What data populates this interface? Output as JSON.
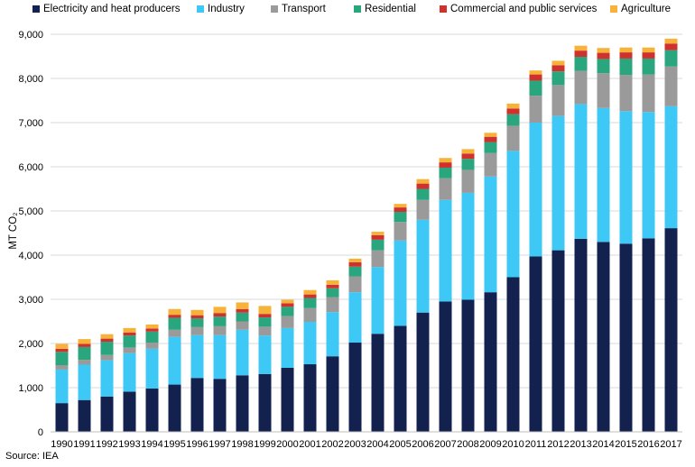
{
  "chart_data": {
    "type": "bar",
    "stacked": true,
    "title": "",
    "xlabel": "",
    "ylabel": "MT CO₂",
    "ylim": [
      0,
      9000
    ],
    "yticks": [
      0,
      1000,
      2000,
      3000,
      4000,
      5000,
      6000,
      7000,
      8000,
      9000
    ],
    "ytick_labels": [
      "0",
      "1,000",
      "2,000",
      "3,000",
      "4,000",
      "5,000",
      "6,000",
      "7,000",
      "8,000",
      "9,000"
    ],
    "grid": true,
    "legend_position": "top",
    "categories": [
      "1990",
      "1991",
      "1992",
      "1993",
      "1994",
      "1995",
      "1996",
      "1997",
      "1998",
      "1999",
      "2000",
      "2001",
      "2002",
      "2003",
      "2004",
      "2005",
      "2006",
      "2007",
      "2008",
      "2009",
      "2010",
      "2011",
      "2012",
      "2013",
      "2014",
      "2015",
      "2016",
      "2017"
    ],
    "series": [
      {
        "name": "Electricity and heat producers",
        "color": "#13214f",
        "values": [
          650,
          720,
          800,
          910,
          980,
          1070,
          1220,
          1200,
          1280,
          1310,
          1450,
          1530,
          1710,
          2020,
          2220,
          2400,
          2700,
          2950,
          2990,
          3160,
          3500,
          3970,
          4110,
          4370,
          4300,
          4260,
          4380,
          4610
        ]
      },
      {
        "name": "Industry",
        "color": "#3ec8f5",
        "values": [
          760,
          800,
          820,
          870,
          900,
          1080,
          970,
          990,
          1030,
          870,
          900,
          960,
          1000,
          1140,
          1510,
          1930,
          2100,
          2300,
          2420,
          2620,
          2860,
          3030,
          3040,
          3050,
          3030,
          3000,
          2860,
          2760
        ]
      },
      {
        "name": "Transport",
        "color": "#9a9a9a",
        "values": [
          100,
          110,
          120,
          130,
          140,
          160,
          180,
          200,
          190,
          200,
          270,
          310,
          340,
          360,
          380,
          420,
          450,
          490,
          520,
          530,
          570,
          610,
          700,
          750,
          790,
          820,
          850,
          900
        ]
      },
      {
        "name": "Residential",
        "color": "#2aa67f",
        "values": [
          300,
          290,
          300,
          270,
          250,
          270,
          200,
          220,
          200,
          210,
          210,
          230,
          200,
          220,
          240,
          230,
          250,
          240,
          250,
          250,
          260,
          340,
          310,
          320,
          320,
          370,
          360,
          370
        ]
      },
      {
        "name": "Commercial and public services",
        "color": "#cf312d",
        "values": [
          70,
          70,
          70,
          70,
          70,
          70,
          70,
          80,
          80,
          80,
          80,
          80,
          80,
          100,
          100,
          100,
          120,
          120,
          120,
          120,
          130,
          140,
          140,
          140,
          140,
          140,
          140,
          150
        ]
      },
      {
        "name": "Agriculture",
        "color": "#f7b23a",
        "values": [
          110,
          110,
          100,
          100,
          90,
          130,
          120,
          140,
          150,
          180,
          80,
          100,
          100,
          80,
          80,
          80,
          100,
          100,
          100,
          90,
          110,
          90,
          100,
          110,
          110,
          110,
          110,
          110
        ]
      }
    ]
  },
  "source": "Source: IEA"
}
